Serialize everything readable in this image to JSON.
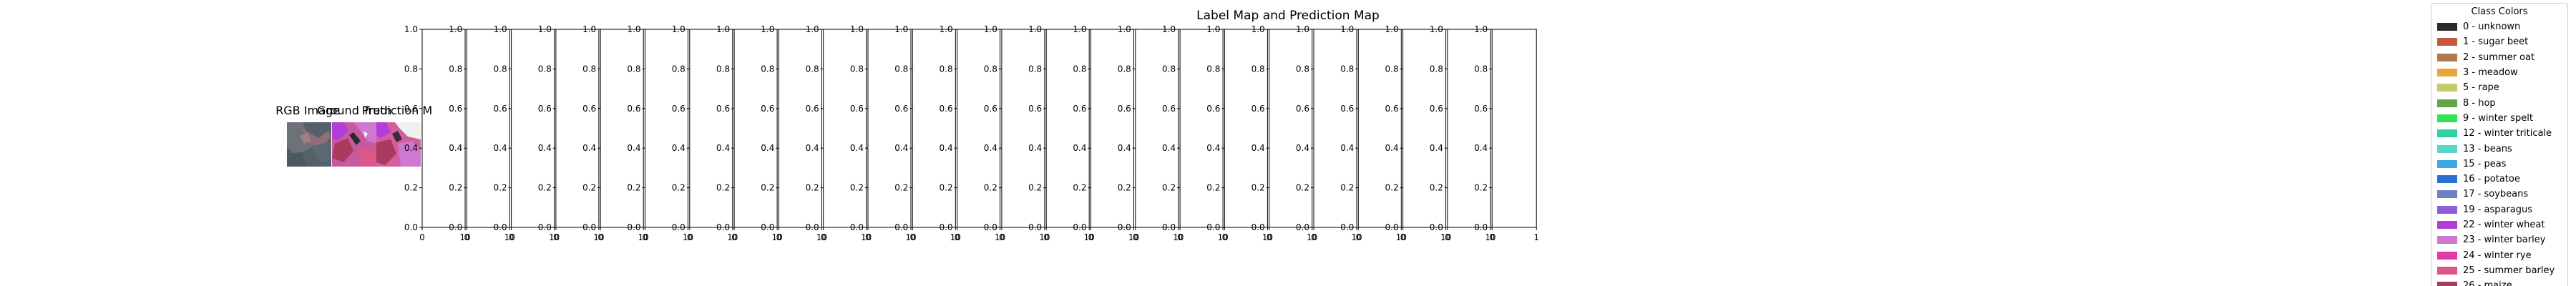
{
  "figure_title": "Label Map and Prediction Map",
  "thumbnails": [
    {
      "title": "RGB Image",
      "kind": "rgb"
    },
    {
      "title": "Ground Truth",
      "kind": "gt"
    },
    {
      "title": "Prediction M",
      "kind": "pred"
    }
  ],
  "chart_data": {
    "type": "other",
    "panels": 25,
    "ylim": [
      0,
      1
    ],
    "yticks": [
      "0.0",
      "0.2",
      "0.4",
      "0.6",
      "0.8",
      "1.0"
    ],
    "xticks_default": [
      "0",
      "10"
    ],
    "xticks_last": [
      "0",
      "1"
    ],
    "xlabel": "",
    "ylabel": "",
    "grid": false,
    "legend_placement": "right"
  },
  "legend": {
    "title": "Class Colors",
    "items": [
      {
        "label": "0 - unknown",
        "color": "#2b2b2b"
      },
      {
        "label": "1 - sugar beet",
        "color": "#c8553d"
      },
      {
        "label": "2 - summer oat",
        "color": "#b07a4f"
      },
      {
        "label": "3 - meadow",
        "color": "#e3a93f"
      },
      {
        "label": "5 - rape",
        "color": "#c6c96a"
      },
      {
        "label": "8 - hop",
        "color": "#63a54c"
      },
      {
        "label": "9 - winter spelt",
        "color": "#35e05a"
      },
      {
        "label": "12 - winter triticale",
        "color": "#2fd0a2"
      },
      {
        "label": "13 - beans",
        "color": "#5bd6c8"
      },
      {
        "label": "15 - peas",
        "color": "#3fa7e6"
      },
      {
        "label": "16 - potatoe",
        "color": "#2d6fd1"
      },
      {
        "label": "17 - soybeans",
        "color": "#6f7fc3"
      },
      {
        "label": "19 - asparagus",
        "color": "#8a5fd9"
      },
      {
        "label": "22 - winter wheat",
        "color": "#b13ed8"
      },
      {
        "label": "23 - winter barley",
        "color": "#cf78d0"
      },
      {
        "label": "24 - winter rye",
        "color": "#e23aa6"
      },
      {
        "label": "25 - summer barley",
        "color": "#d9578a"
      },
      {
        "label": "26 - maize",
        "color": "#a83a5e"
      }
    ]
  }
}
